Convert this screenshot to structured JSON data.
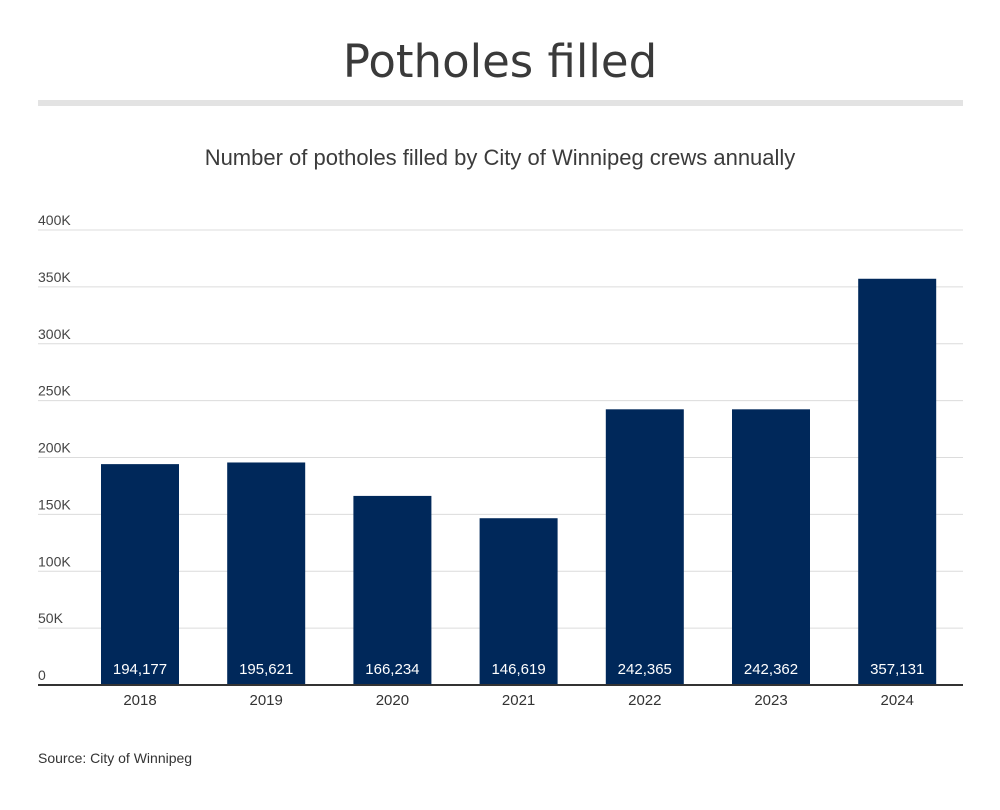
{
  "title": "Potholes filled",
  "subtitle": "Number of potholes filled by City of Winnipeg crews annually",
  "source": "Source: City of Winnipeg",
  "colors": {
    "bar": "#00285a",
    "grid": "#dcdcdc",
    "axis": "#333333",
    "title_rule": "#e3e3e3"
  },
  "chart_data": {
    "type": "bar",
    "title": "Number of potholes filled by City of Winnipeg crews annually",
    "xlabel": "",
    "ylabel": "",
    "categories": [
      "2018",
      "2019",
      "2020",
      "2021",
      "2022",
      "2023",
      "2024"
    ],
    "values": [
      194177,
      195621,
      166234,
      146619,
      242365,
      242362,
      357131
    ],
    "data_labels": [
      "194,177",
      "195,621",
      "166,234",
      "146,619",
      "242,365",
      "242,362",
      "357,131"
    ],
    "ylim": [
      0,
      400000
    ],
    "y_ticks": [
      0,
      50000,
      100000,
      150000,
      200000,
      250000,
      300000,
      350000,
      400000
    ],
    "y_tick_labels": [
      "0",
      "50K",
      "100K",
      "150K",
      "200K",
      "250K",
      "300K",
      "350K",
      "400K"
    ],
    "grid": true,
    "legend": "none"
  }
}
